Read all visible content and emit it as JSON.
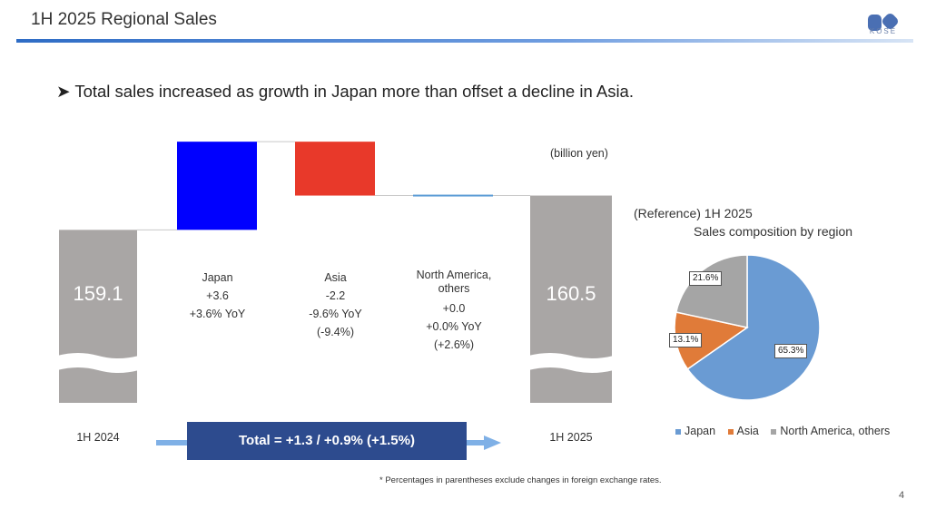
{
  "header": {
    "title": "1H 2025 Regional Sales",
    "logo_text": "KOSÉ",
    "page_number": "4"
  },
  "headline": "Total sales increased as growth in Japan more than offset a decline in Asia.",
  "colors": {
    "accent": "#2e6cc5",
    "japan_bar": "#0000ff",
    "asia_bar": "#e8392a",
    "na_bar": "#5b9bd5",
    "total_bar": "#a9a6a5",
    "total_box": "#2d4b8e",
    "pie_japan": "#6a9bd3",
    "pie_asia": "#e07b39",
    "pie_na": "#a5a5a5"
  },
  "chart_data": [
    {
      "type": "bar",
      "subtype": "waterfall",
      "unit_label": "(billion yen)",
      "categories": [
        "1H 2024",
        "Japan",
        "Asia",
        "North America, others",
        "1H 2025"
      ],
      "start": {
        "label": "1H 2024",
        "value": 159.1,
        "value_label": "159.1"
      },
      "end": {
        "label": "1H 2025",
        "value": 160.5,
        "value_label": "160.5"
      },
      "changes": [
        {
          "name": "Japan",
          "value": 3.6,
          "lines": [
            "Japan",
            "+3.6",
            "+3.6% YoY"
          ]
        },
        {
          "name": "Asia",
          "value": -2.2,
          "lines": [
            "Asia",
            "-2.2",
            "-9.6% YoY",
            "(-9.4%)"
          ]
        },
        {
          "name": "North America, others",
          "value": 0.0,
          "lines": [
            "North America,",
            "others",
            "+0.0",
            "+0.0% YoY",
            "(+2.6%)"
          ]
        }
      ],
      "total_text": "Total = +1.3 / +0.9% (+1.5%)",
      "footnote": "* Percentages in parentheses exclude changes in foreign exchange rates."
    },
    {
      "type": "pie",
      "title": "(Reference) 1H 2025",
      "subtitle": "Sales composition by region",
      "series": [
        {
          "name": "Japan",
          "value": 65.3,
          "label": "65.3%"
        },
        {
          "name": "Asia",
          "value": 13.1,
          "label": "13.1%"
        },
        {
          "name": "North America, others",
          "value": 21.6,
          "label": "21.6%"
        }
      ],
      "legend_position": "bottom"
    }
  ]
}
